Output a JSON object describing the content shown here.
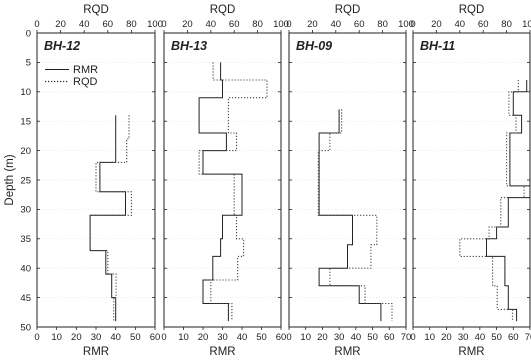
{
  "chart_data": {
    "type": "line",
    "y_axis": {
      "label": "Depth (m)",
      "range": [
        0,
        50
      ],
      "ticks": [
        "0",
        "5",
        "10",
        "15",
        "20",
        "25",
        "30",
        "35",
        "40",
        "45",
        "50"
      ],
      "inverted": true
    },
    "top_axis": {
      "label": "RQD",
      "ticks": [
        "0",
        "20",
        "40",
        "60",
        "80",
        "100"
      ]
    },
    "bottom_axis_label": "RMR",
    "legend": {
      "placement": "top-left inside first panel",
      "entries": [
        "RMR",
        "RQD"
      ]
    },
    "panels": [
      {
        "title": "BH-12",
        "rmr_ticks": [
          "0",
          "10",
          "20",
          "30",
          "40",
          "50",
          "60"
        ],
        "rmr_range": [
          0,
          60
        ],
        "rqd_range": [
          0,
          100
        ],
        "series": [
          {
            "name": "RMR",
            "style": "solid",
            "color": "#222222",
            "steps": [
              [
                14,
                18,
                40
              ],
              [
                18,
                22,
                40
              ],
              [
                22,
                27,
                32
              ],
              [
                27,
                31,
                45
              ],
              [
                31,
                37,
                27
              ],
              [
                37,
                41,
                35
              ],
              [
                41,
                45,
                38
              ],
              [
                45,
                49,
                40
              ]
            ]
          },
          {
            "name": "RQD",
            "style": "dotted",
            "color": "#444444",
            "steps": [
              [
                14,
                18,
                78
              ],
              [
                18,
                22,
                76
              ],
              [
                22,
                27,
                50
              ],
              [
                27,
                31,
                80
              ],
              [
                31,
                37,
                45
              ],
              [
                37,
                41,
                60
              ],
              [
                41,
                45,
                67
              ],
              [
                45,
                49,
                65
              ]
            ]
          }
        ]
      },
      {
        "title": "BH-13",
        "rmr_ticks": [
          "0",
          "10",
          "20",
          "30",
          "40",
          "50",
          "60"
        ],
        "rmr_range": [
          0,
          60
        ],
        "rqd_range": [
          0,
          100
        ],
        "series": [
          {
            "name": "RMR",
            "style": "solid",
            "color": "#222222",
            "steps": [
              [
                5,
                8,
                29
              ],
              [
                8,
                11,
                30
              ],
              [
                11,
                17,
                18
              ],
              [
                17,
                20,
                32
              ],
              [
                20,
                24,
                20
              ],
              [
                24,
                31,
                40
              ],
              [
                31,
                35,
                30
              ],
              [
                35,
                38,
                29
              ],
              [
                38,
                42,
                25
              ],
              [
                42,
                46,
                20
              ],
              [
                46,
                49,
                33
              ]
            ]
          },
          {
            "name": "RQD",
            "style": "dotted",
            "color": "#444444",
            "steps": [
              [
                5,
                8,
                42
              ],
              [
                8,
                11,
                88
              ],
              [
                11,
                17,
                55
              ],
              [
                17,
                20,
                62
              ],
              [
                20,
                24,
                30
              ],
              [
                24,
                31,
                60
              ],
              [
                31,
                35,
                62
              ],
              [
                35,
                38,
                68
              ],
              [
                38,
                42,
                63
              ],
              [
                42,
                46,
                40
              ],
              [
                46,
                49,
                58
              ]
            ]
          }
        ]
      },
      {
        "title": "BH-09",
        "rmr_ticks": [
          "0",
          "10",
          "20",
          "30",
          "40",
          "50",
          "60",
          "70"
        ],
        "rmr_range": [
          0,
          70
        ],
        "rqd_range": [
          0,
          100
        ],
        "series": [
          {
            "name": "RMR",
            "style": "solid",
            "color": "#222222",
            "steps": [
              [
                13,
                17,
                30
              ],
              [
                17,
                31,
                18
              ],
              [
                31,
                36,
                38
              ],
              [
                36,
                40,
                35
              ],
              [
                40,
                43,
                18
              ],
              [
                43,
                46,
                42
              ],
              [
                46,
                49,
                55
              ]
            ]
          },
          {
            "name": "RQD",
            "style": "dotted",
            "color": "#444444",
            "steps": [
              [
                13,
                17,
                45
              ],
              [
                17,
                20,
                35
              ],
              [
                20,
                31,
                25
              ],
              [
                31,
                36,
                75
              ],
              [
                36,
                40,
                70
              ],
              [
                40,
                43,
                35
              ],
              [
                43,
                46,
                65
              ],
              [
                46,
                49,
                88
              ]
            ]
          }
        ]
      },
      {
        "title": "BH-11",
        "rmr_ticks": [
          "0",
          "10",
          "20",
          "30",
          "40",
          "50",
          "60",
          "70"
        ],
        "rmr_range": [
          0,
          70
        ],
        "rqd_range": [
          0,
          100
        ],
        "series": [
          {
            "name": "RMR",
            "style": "solid",
            "color": "#222222",
            "steps": [
              [
                8,
                10,
                68
              ],
              [
                10,
                14,
                60
              ],
              [
                14,
                17,
                65
              ],
              [
                17,
                26,
                58
              ],
              [
                26,
                28,
                70
              ],
              [
                28,
                33,
                57
              ],
              [
                33,
                35,
                50
              ],
              [
                35,
                38,
                44
              ],
              [
                38,
                43,
                55
              ],
              [
                43,
                47,
                57
              ],
              [
                47,
                49,
                62
              ]
            ]
          },
          {
            "name": "RQD",
            "style": "dotted",
            "color": "#444444",
            "steps": [
              [
                8,
                10,
                90
              ],
              [
                10,
                14,
                82
              ],
              [
                14,
                17,
                88
              ],
              [
                17,
                26,
                80
              ],
              [
                26,
                28,
                95
              ],
              [
                28,
                33,
                75
              ],
              [
                33,
                35,
                65
              ],
              [
                35,
                38,
                40
              ],
              [
                38,
                43,
                68
              ],
              [
                43,
                47,
                72
              ],
              [
                47,
                49,
                85
              ]
            ]
          }
        ]
      }
    ]
  }
}
